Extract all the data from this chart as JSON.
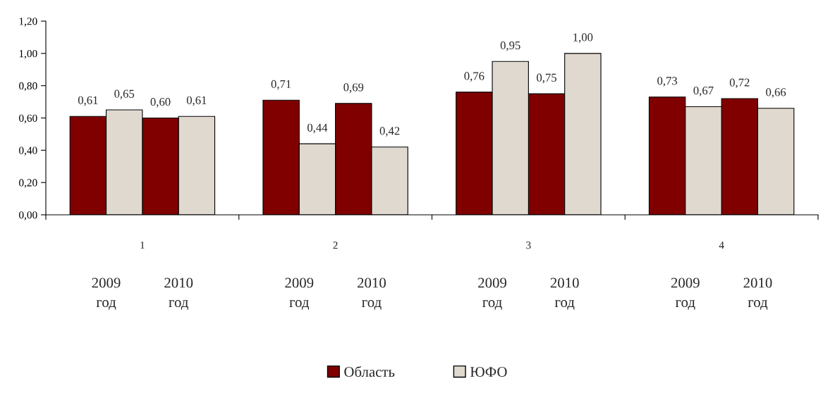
{
  "chart_data": {
    "type": "bar",
    "categories": [
      "2009\nгод",
      "2010\nгод",
      "2009\nгод",
      "2010\nгод",
      "2009\nгод",
      "2010\nгод",
      "2009\nгод",
      "2010\nгод"
    ],
    "series": [
      {
        "name": "Область",
        "color": "#800000",
        "values": [
          0.61,
          0.6,
          0.71,
          0.69,
          0.76,
          0.75,
          0.73,
          0.72
        ],
        "value_labels": [
          "0,61",
          "0,60",
          "0,71",
          "0,69",
          "0,76",
          "0,75",
          "0,73",
          "0,72"
        ]
      },
      {
        "name": "ЮФО",
        "color": "#e0d9d0",
        "values": [
          0.65,
          0.61,
          0.44,
          0.42,
          0.95,
          1.0,
          0.67,
          0.66
        ],
        "value_labels": [
          "0,65",
          "0,61",
          "0,44",
          "0,42",
          "0,95",
          "1,00",
          "0,67",
          "0,66"
        ]
      }
    ],
    "annotations": [
      "1",
      "2",
      "3",
      "4"
    ],
    "ylim": [
      0,
      1.2
    ],
    "yticks": [
      {
        "value": 0,
        "label": "0,00"
      },
      {
        "value": 0.2,
        "label": "0,20"
      },
      {
        "value": 0.4,
        "label": "0,40"
      },
      {
        "value": 0.6,
        "label": "0,60"
      },
      {
        "value": 0.8,
        "label": "0,80"
      },
      {
        "value": 1.0,
        "label": "1,00"
      },
      {
        "value": 1.2,
        "label": "1,20"
      }
    ],
    "grid": false,
    "legend": "bottom"
  }
}
